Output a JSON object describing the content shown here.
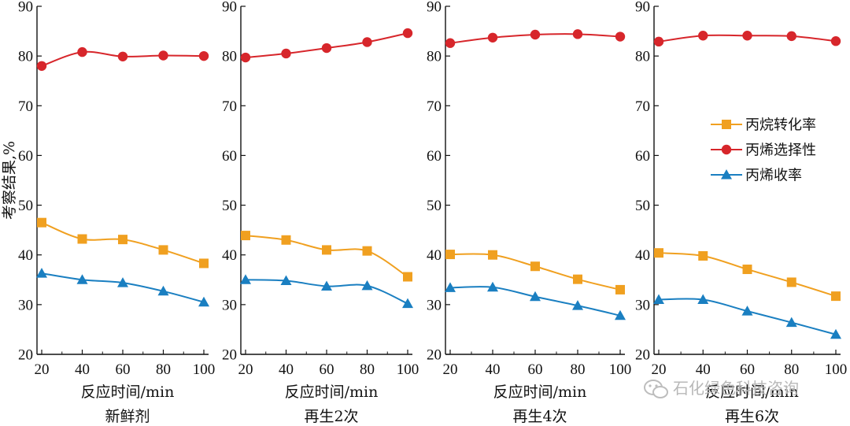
{
  "chart_data": {
    "type": "line",
    "ylabel": "考察结果,%",
    "ylim": [
      20,
      90
    ],
    "yticks": [
      20,
      30,
      40,
      50,
      60,
      70,
      80,
      90
    ],
    "xlim": [
      20,
      100
    ],
    "xticks": [
      20,
      40,
      60,
      80,
      100
    ],
    "grid": false,
    "legend_position": "right",
    "legend": [
      {
        "name": "丙烷转化率",
        "color": "#f0a020",
        "marker": "square"
      },
      {
        "name": "丙烯选择性",
        "color": "#d7262b",
        "marker": "circle"
      },
      {
        "name": "丙烯收率",
        "color": "#1a7fc1",
        "marker": "triangle"
      }
    ],
    "panels": [
      {
        "xlabel": "反应时间/min",
        "caption": "新鲜剂",
        "x": [
          20,
          40,
          60,
          80,
          100
        ],
        "series": [
          {
            "name": "丙烷转化率",
            "values": [
              46.5,
              43.2,
              43.1,
              41.0,
              38.3
            ]
          },
          {
            "name": "丙烯选择性",
            "values": [
              78.0,
              80.8,
              79.9,
              80.1,
              80.0
            ]
          },
          {
            "name": "丙烯收率",
            "values": [
              36.3,
              35.0,
              34.4,
              32.7,
              30.5
            ]
          }
        ]
      },
      {
        "xlabel": "反应时间/min",
        "caption": "再生2次",
        "x": [
          20,
          40,
          60,
          80,
          100
        ],
        "series": [
          {
            "name": "丙烷转化率",
            "values": [
              43.9,
              43.0,
              41.0,
              40.8,
              35.6
            ]
          },
          {
            "name": "丙烯选择性",
            "values": [
              79.7,
              80.5,
              81.6,
              82.8,
              84.6
            ]
          },
          {
            "name": "丙烯收率",
            "values": [
              35.0,
              34.8,
              33.7,
              33.8,
              30.2
            ]
          }
        ]
      },
      {
        "xlabel": "反应时间/min",
        "caption": "再生4次",
        "x": [
          20,
          40,
          60,
          80,
          100
        ],
        "series": [
          {
            "name": "丙烷转化率",
            "values": [
              40.1,
              40.0,
              37.7,
              35.1,
              33.0
            ]
          },
          {
            "name": "丙烯选择性",
            "values": [
              82.6,
              83.7,
              84.3,
              84.4,
              83.9
            ]
          },
          {
            "name": "丙烯收率",
            "values": [
              33.4,
              33.5,
              31.6,
              29.8,
              27.8
            ]
          }
        ]
      },
      {
        "xlabel": "反应时间/min",
        "caption": "再生6次",
        "x": [
          20,
          40,
          60,
          80,
          100
        ],
        "series": [
          {
            "name": "丙烷转化率",
            "values": [
              40.4,
              39.8,
              37.1,
              34.5,
              31.7
            ]
          },
          {
            "name": "丙烯选择性",
            "values": [
              82.9,
              84.1,
              84.1,
              84.0,
              83.0
            ]
          },
          {
            "name": "丙烯收率",
            "values": [
              31.0,
              31.0,
              28.7,
              26.4,
              24.0
            ]
          }
        ]
      }
    ]
  },
  "watermark": "石化绿色科技咨询"
}
